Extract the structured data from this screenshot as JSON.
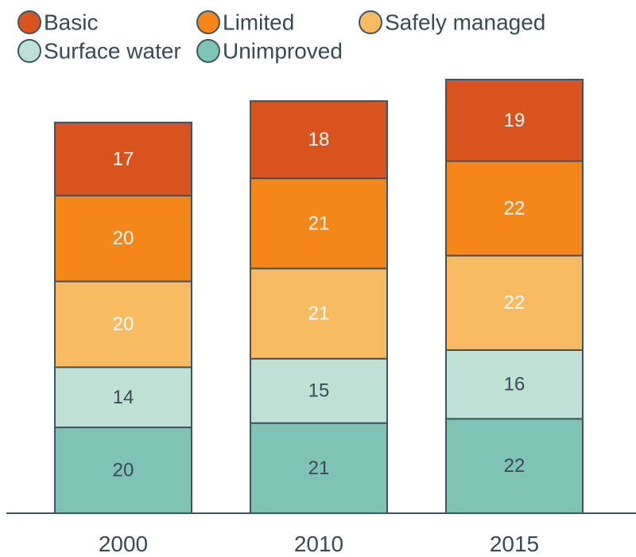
{
  "chart_data": {
    "type": "bar",
    "stacked": true,
    "categories": [
      "2000",
      "2010",
      "2015"
    ],
    "series": [
      {
        "name": "Unimproved",
        "values": [
          20,
          21,
          22
        ],
        "color": "#7fc3b5",
        "text_color": "#3a4a55"
      },
      {
        "name": "Surface water",
        "values": [
          14,
          15,
          16
        ],
        "color": "#bfe0d5",
        "text_color": "#3a4a55"
      },
      {
        "name": "Safely managed",
        "values": [
          20,
          21,
          22
        ],
        "color": "#f8bb62",
        "text_color": "#ffffff"
      },
      {
        "name": "Limited",
        "values": [
          20,
          21,
          22
        ],
        "color": "#f5861a",
        "text_color": "#ffffff"
      },
      {
        "name": "Basic",
        "values": [
          17,
          18,
          19
        ],
        "color": "#d9531e",
        "text_color": "#ffffff"
      }
    ],
    "legend": {
      "placement": "top-left",
      "order": [
        "Basic",
        "Limited",
        "Safely managed",
        "Surface water",
        "Unimproved"
      ]
    },
    "axis_color": "#3f5563",
    "grid": false,
    "ylim": [
      0,
      101
    ]
  }
}
